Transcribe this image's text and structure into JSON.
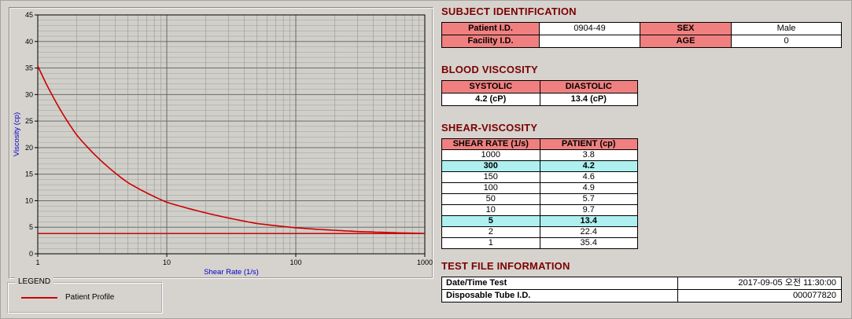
{
  "chart": {
    "legend_title": "LEGEND",
    "legend_items": [
      {
        "label": "Patient Profile",
        "color": "#cc0000"
      }
    ]
  },
  "chart_data": {
    "type": "line",
    "title": "",
    "xlabel": "Shear Rate (1/s)",
    "ylabel": "Viscosity (cp)",
    "x_scale": "log",
    "xlim": [
      1,
      1000
    ],
    "ylim": [
      0,
      45
    ],
    "ytick_step": 5,
    "xticks": [
      1,
      10,
      100,
      1000
    ],
    "grid": "on",
    "series": [
      {
        "name": "Patient Profile",
        "color": "#cc0000",
        "x": [
          1,
          2,
          5,
          10,
          50,
          100,
          150,
          300,
          1000
        ],
        "y": [
          35.4,
          22.4,
          13.4,
          9.7,
          5.7,
          4.9,
          4.6,
          4.2,
          3.8
        ]
      }
    ],
    "reference_line": {
      "y": 3.8,
      "color": "#cc0000"
    }
  },
  "sections": {
    "subject": {
      "title": "SUBJECT IDENTIFICATION",
      "rows": [
        {
          "label1": "Patient I.D.",
          "value1": "0904-49",
          "label2": "SEX",
          "value2": "Male"
        },
        {
          "label1": "Facility I.D.",
          "value1": "",
          "label2": "AGE",
          "value2": "0"
        }
      ]
    },
    "blood": {
      "title": "BLOOD VISCOSITY",
      "headers": [
        "SYSTOLIC",
        "DIASTOLIC"
      ],
      "values": [
        "4.2 (cP)",
        "13.4 (cP)"
      ]
    },
    "shear": {
      "title": "SHEAR-VISCOSITY",
      "headers": [
        "SHEAR RATE (1/s)",
        "PATIENT (cp)"
      ],
      "rows": [
        {
          "rate": "1000",
          "value": "3.8",
          "highlight": false
        },
        {
          "rate": "300",
          "value": "4.2",
          "highlight": true
        },
        {
          "rate": "150",
          "value": "4.6",
          "highlight": false
        },
        {
          "rate": "100",
          "value": "4.9",
          "highlight": false
        },
        {
          "rate": "50",
          "value": "5.7",
          "highlight": false
        },
        {
          "rate": "10",
          "value": "9.7",
          "highlight": false
        },
        {
          "rate": "5",
          "value": "13.4",
          "highlight": true
        },
        {
          "rate": "2",
          "value": "22.4",
          "highlight": false
        },
        {
          "rate": "1",
          "value": "35.4",
          "highlight": false
        }
      ]
    },
    "testfile": {
      "title": "TEST FILE INFORMATION",
      "rows": [
        {
          "label": "Date/Time Test",
          "value": "2017-09-05  오전 11:30:00"
        },
        {
          "label": "Disposable Tube I.D.",
          "value": "000077820"
        }
      ]
    }
  },
  "colors": {
    "header_text": "#7b0000",
    "table_header_bg": "#f08080",
    "highlight_bg": "#aef0f0",
    "curve": "#cc0000",
    "axis_label": "#0000c8"
  }
}
